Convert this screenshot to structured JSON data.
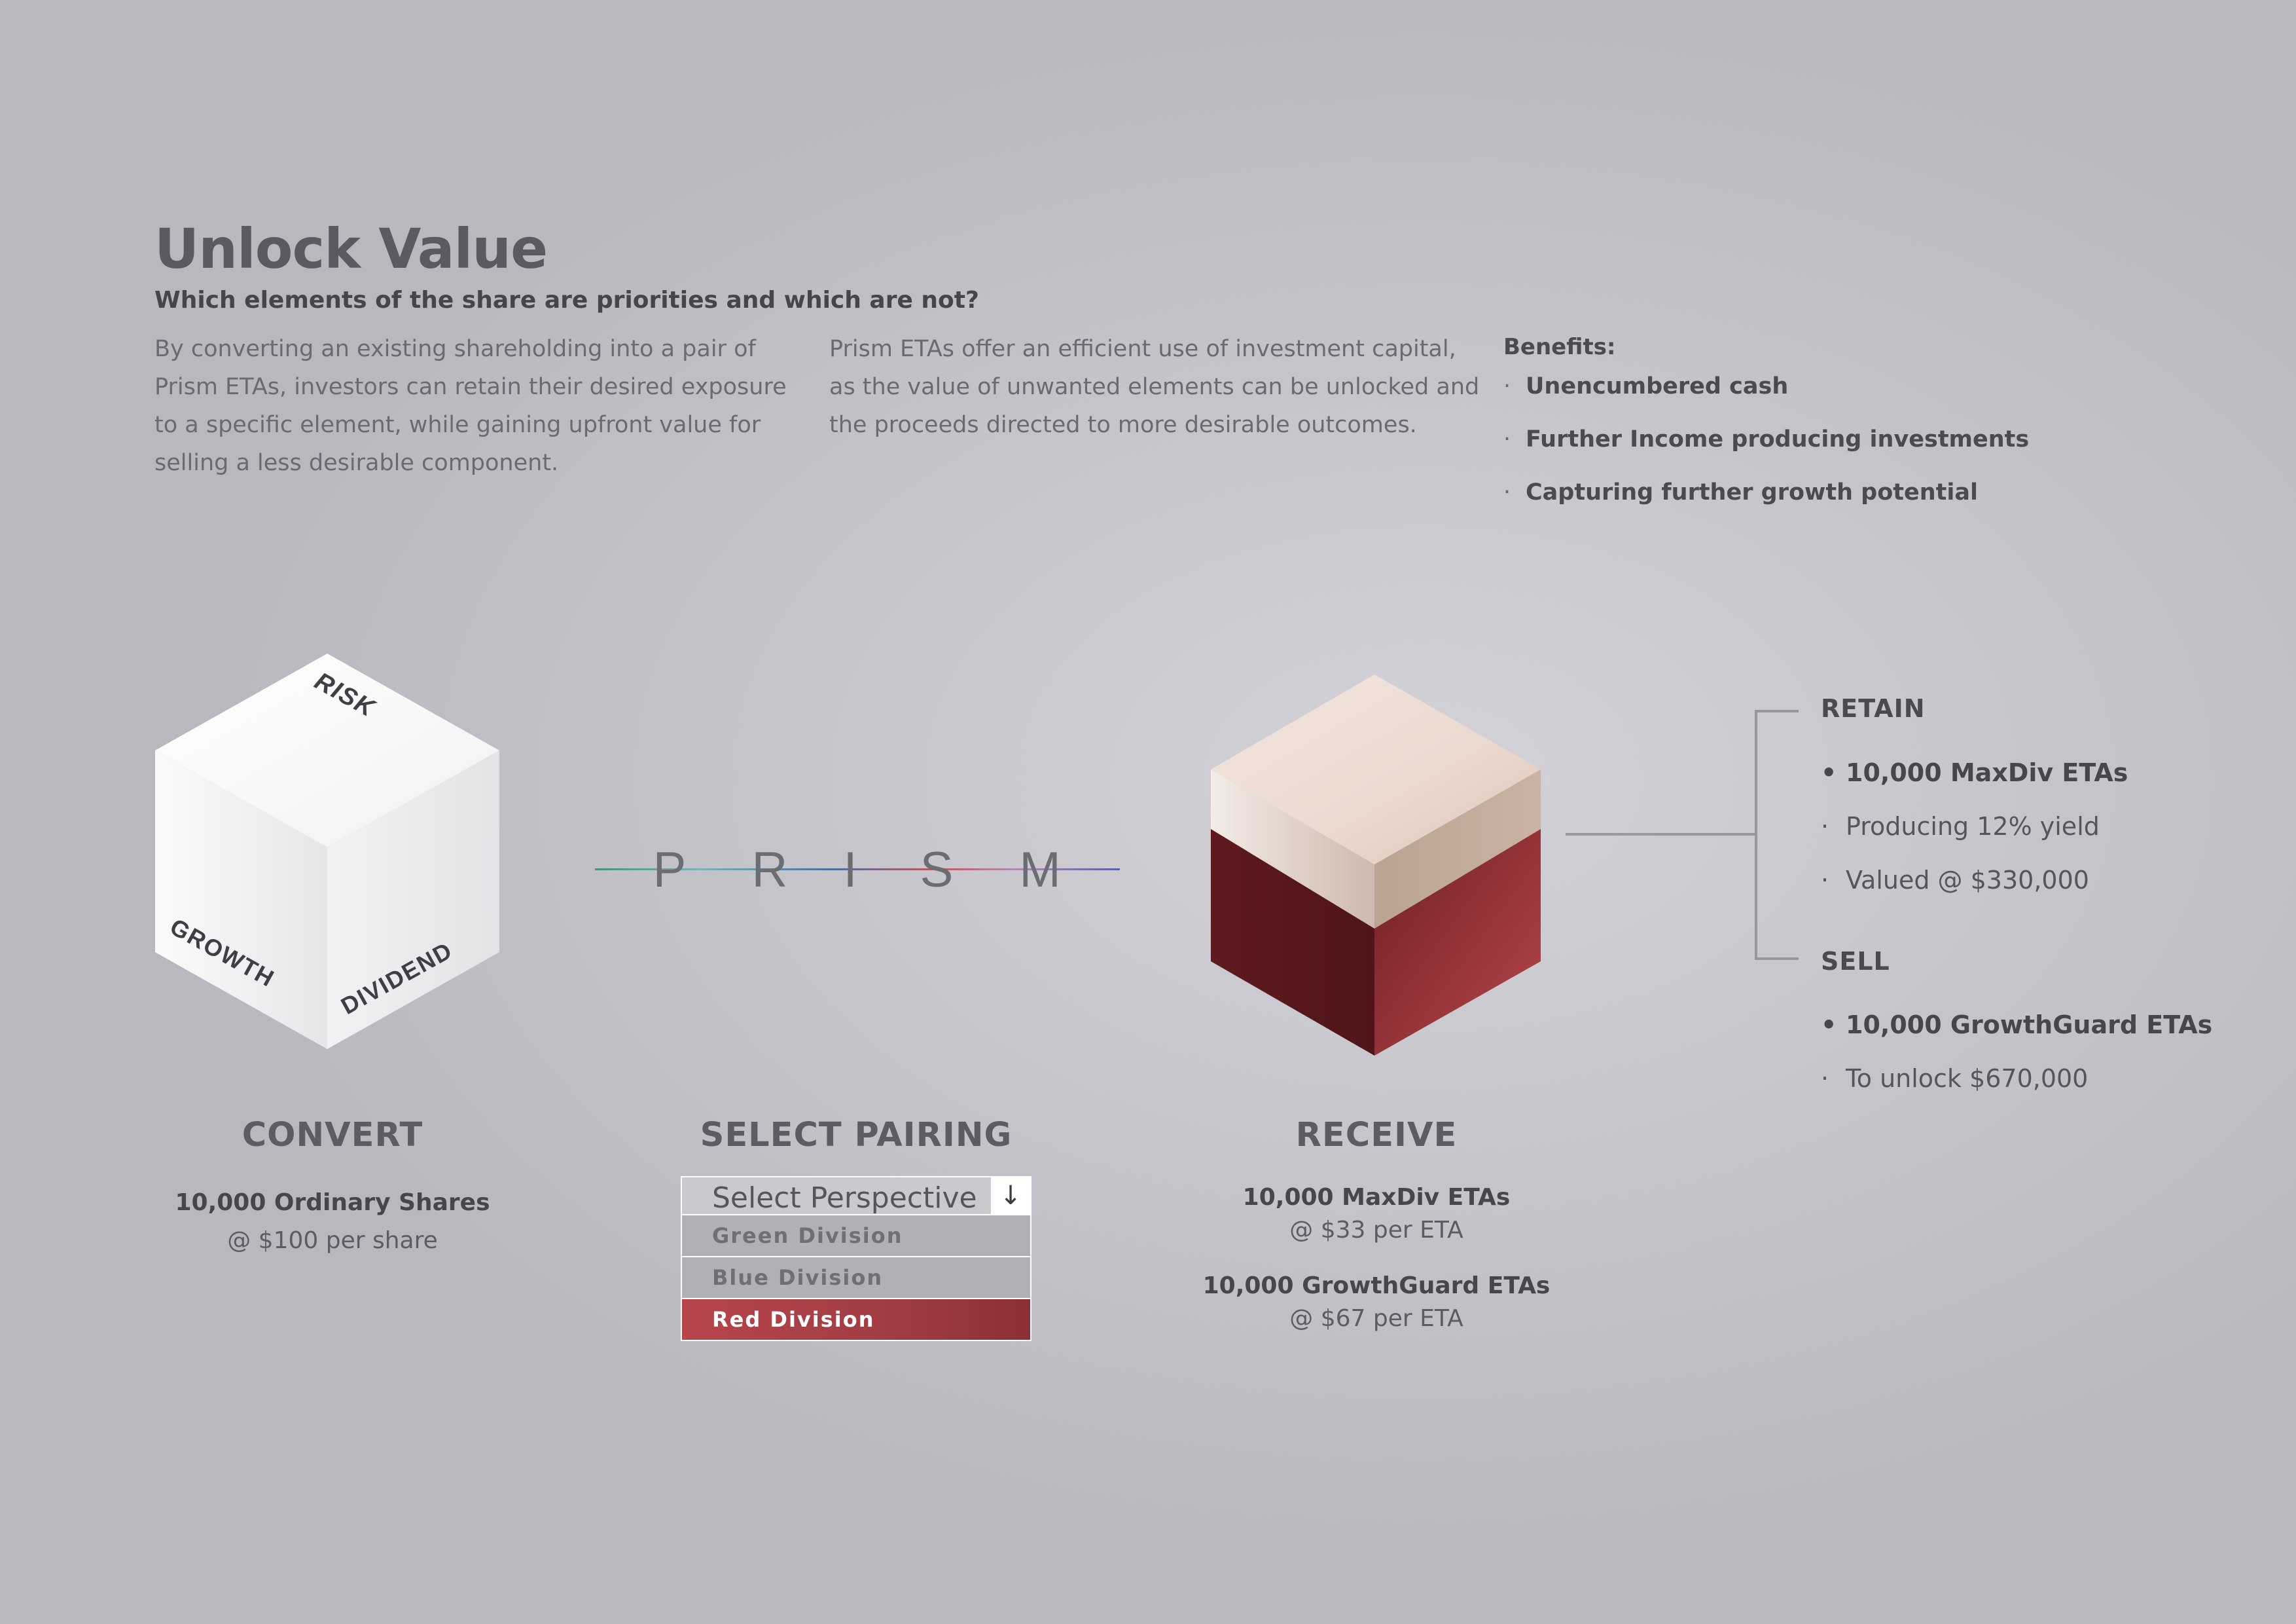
{
  "header": {
    "title": "Unlock Value",
    "subtitle": "Which elements of the share are priorities and which are not?",
    "para1": "By converting an existing shareholding into a pair of Prism ETAs, investors can retain their desired exposure to a specific element, while gaining upfront value for selling a less desirable component.",
    "para2": "Prism ETAs offer an efficient use of investment capital, as the value of unwanted elements can be unlocked and the proceeds directed to more desirable outcomes."
  },
  "benefits": {
    "heading": "Benefits:",
    "items": [
      "Unencumbered cash",
      "Further Income producing investments",
      "Capturing further growth potential"
    ]
  },
  "cube_white": {
    "risk": "RISK",
    "growth": "GROWTH",
    "dividend": "DIVIDEND"
  },
  "prism": {
    "letters": [
      "P",
      "R",
      "I",
      "S",
      "M"
    ]
  },
  "convert": {
    "heading": "CONVERT",
    "line1": "10,000 Ordinary Shares",
    "line2": "@ $100 per share"
  },
  "pairing": {
    "heading": "SELECT PAIRING",
    "dropdown_label": "Select Perspective",
    "options": [
      "Green Division",
      "Blue Division",
      "Red Division"
    ],
    "selected": "Red Division"
  },
  "receive": {
    "heading": "RECEIVE",
    "a_line1": "10,000 MaxDiv ETAs",
    "a_line2": "@ $33 per ETA",
    "b_line1": "10,000 GrowthGuard ETAs",
    "b_line2": "@ $67 per ETA"
  },
  "retain": {
    "heading": "RETAIN",
    "items": [
      "10,000 MaxDiv ETAs",
      "Producing 12% yield",
      "Valued @ $330,000"
    ]
  },
  "sell": {
    "heading": "SELL",
    "items": [
      "10,000 GrowthGuard ETAs",
      "To unlock $670,000"
    ]
  },
  "colors": {
    "accent_red": "#a03d44",
    "cream_top": "#e6d6cc",
    "dark_red": "#6b1c22"
  }
}
